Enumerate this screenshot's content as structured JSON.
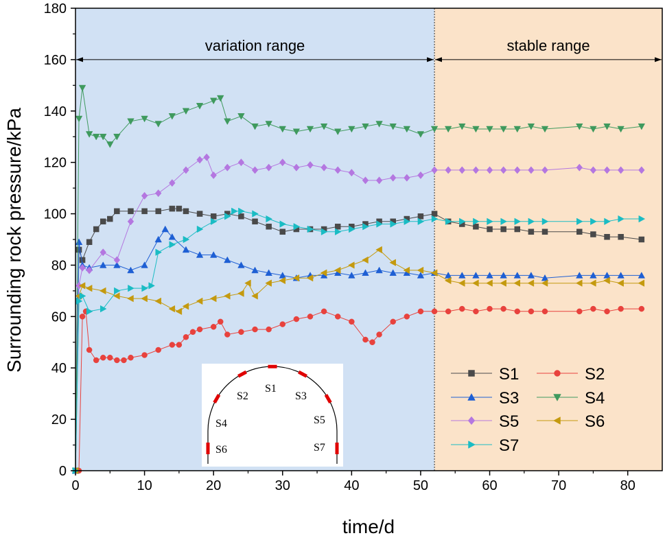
{
  "chart_data": {
    "type": "scatter",
    "title": "",
    "xlabel": "time/d",
    "ylabel": "Surrounding rock pressure/kPa",
    "xlim": [
      0,
      85
    ],
    "ylim": [
      0,
      180
    ],
    "xticks": [
      0,
      10,
      20,
      30,
      40,
      50,
      60,
      70,
      80
    ],
    "yticks": [
      0,
      20,
      40,
      60,
      80,
      100,
      120,
      140,
      160,
      180
    ],
    "grid": false,
    "legend_position": "bottom-right",
    "regions": [
      {
        "label": "variation range",
        "x_start": 0,
        "x_end": 52,
        "color": "#d1e1f4"
      },
      {
        "label": "stable range",
        "x_start": 52,
        "x_end": 85,
        "color": "#fbe3c9"
      }
    ],
    "region_arrow_y": 160,
    "inset": {
      "labels": [
        "S1",
        "S2",
        "S3",
        "S4",
        "S5",
        "S6",
        "S7"
      ]
    },
    "series": [
      {
        "name": "S1",
        "color": "#4a4a4a",
        "marker": "square",
        "x": [
          0,
          0.5,
          1,
          2,
          3,
          4,
          5,
          6,
          8,
          10,
          12,
          14,
          15,
          16,
          18,
          20,
          22,
          24,
          26,
          28,
          30,
          32,
          34,
          36,
          38,
          40,
          42,
          44,
          46,
          48,
          50,
          52,
          54,
          56,
          58,
          60,
          62,
          64,
          66,
          68,
          73,
          75,
          77,
          79,
          82
        ],
        "y": [
          0,
          86,
          82,
          89,
          94,
          97,
          98,
          101,
          101,
          101,
          101,
          102,
          102,
          101,
          100,
          99,
          100,
          99,
          97,
          95,
          93,
          94,
          94,
          94,
          95,
          95,
          96,
          97,
          97,
          98,
          99,
          100,
          97,
          96,
          95,
          94,
          94,
          94,
          93,
          93,
          93,
          92,
          91,
          91,
          90
        ]
      },
      {
        "name": "S2",
        "color": "#e8423d",
        "marker": "circle",
        "x": [
          0,
          0.5,
          1,
          1.5,
          2,
          3,
          4,
          5,
          6,
          7,
          8,
          10,
          12,
          14,
          15,
          16,
          17,
          18,
          20,
          21,
          22,
          24,
          26,
          28,
          30,
          32,
          34,
          36,
          38,
          40,
          42,
          43,
          44,
          46,
          48,
          50,
          52,
          54,
          56,
          58,
          60,
          62,
          64,
          66,
          68,
          73,
          75,
          77,
          79,
          82
        ],
        "y": [
          0,
          0,
          60,
          62,
          47,
          43,
          44,
          44,
          43,
          43,
          44,
          45,
          47,
          49,
          49,
          52,
          54,
          55,
          56,
          58,
          53,
          54,
          55,
          55,
          57,
          59,
          60,
          62,
          60,
          58,
          51,
          50,
          53,
          58,
          60,
          62,
          62,
          62,
          63,
          62,
          63,
          63,
          62,
          62,
          62,
          62,
          63,
          62,
          63,
          63
        ]
      },
      {
        "name": "S3",
        "color": "#1e5fd4",
        "marker": "triangle-up",
        "x": [
          0,
          0.5,
          1,
          2,
          4,
          6,
          8,
          10,
          12,
          13,
          14,
          16,
          18,
          20,
          22,
          24,
          26,
          28,
          30,
          32,
          34,
          36,
          38,
          40,
          42,
          44,
          46,
          48,
          50,
          52,
          54,
          56,
          58,
          60,
          62,
          64,
          66,
          68,
          73,
          75,
          77,
          79,
          82
        ],
        "y": [
          0,
          89,
          80,
          79,
          80,
          80,
          78,
          80,
          90,
          94,
          91,
          86,
          84,
          84,
          82,
          80,
          78,
          77,
          76,
          75,
          76,
          76,
          77,
          76,
          77,
          78,
          77,
          77,
          76,
          77,
          76,
          76,
          76,
          76,
          76,
          76,
          76,
          75,
          76,
          76,
          76,
          76,
          76
        ]
      },
      {
        "name": "S4",
        "color": "#3f9a5e",
        "marker": "triangle-down",
        "x": [
          0,
          0.5,
          1,
          2,
          3,
          4,
          5,
          6,
          8,
          10,
          12,
          14,
          16,
          18,
          20,
          21,
          22,
          24,
          26,
          28,
          30,
          32,
          34,
          36,
          38,
          40,
          42,
          44,
          46,
          48,
          50,
          52,
          54,
          56,
          58,
          60,
          62,
          64,
          66,
          68,
          73,
          75,
          77,
          79,
          82
        ],
        "y": [
          0,
          137,
          149,
          131,
          130,
          130,
          127,
          130,
          136,
          137,
          135,
          138,
          140,
          142,
          144,
          145,
          136,
          138,
          134,
          135,
          133,
          132,
          133,
          134,
          132,
          133,
          134,
          135,
          134,
          133,
          131,
          133,
          133,
          134,
          133,
          133,
          133,
          133,
          134,
          133,
          134,
          133,
          134,
          133,
          134
        ]
      },
      {
        "name": "S5",
        "color": "#b477e0",
        "marker": "diamond",
        "x": [
          0,
          0.5,
          1,
          2,
          4,
          6,
          8,
          10,
          12,
          14,
          16,
          18,
          19,
          20,
          22,
          24,
          26,
          28,
          30,
          32,
          34,
          36,
          38,
          40,
          42,
          44,
          46,
          48,
          50,
          52,
          54,
          56,
          58,
          60,
          62,
          64,
          66,
          68,
          73,
          75,
          77,
          79,
          82
        ],
        "y": [
          0,
          72,
          79,
          78,
          85,
          82,
          97,
          107,
          108,
          112,
          117,
          121,
          122,
          115,
          118,
          120,
          117,
          118,
          120,
          118,
          119,
          118,
          117,
          116,
          113,
          113,
          114,
          114,
          115,
          117,
          117,
          117,
          117,
          117,
          117,
          117,
          117,
          117,
          118,
          117,
          117,
          117,
          117
        ]
      },
      {
        "name": "S6",
        "color": "#c49a0f",
        "marker": "triangle-left",
        "x": [
          0,
          0.5,
          1,
          2,
          4,
          6,
          8,
          10,
          12,
          14,
          15,
          16,
          18,
          20,
          22,
          24,
          25,
          26,
          28,
          30,
          32,
          34,
          36,
          38,
          40,
          42,
          44,
          46,
          48,
          50,
          52,
          54,
          56,
          58,
          60,
          62,
          64,
          66,
          68,
          73,
          75,
          77,
          79,
          82
        ],
        "y": [
          0,
          68,
          72,
          71,
          70,
          68,
          67,
          67,
          66,
          63,
          62,
          64,
          66,
          67,
          68,
          69,
          73,
          68,
          73,
          74,
          75,
          75,
          77,
          78,
          80,
          82,
          86,
          81,
          78,
          78,
          77,
          74,
          73,
          73,
          73,
          73,
          73,
          73,
          73,
          73,
          73,
          74,
          73,
          73
        ]
      },
      {
        "name": "S7",
        "color": "#1bbcc4",
        "marker": "triangle-right",
        "x": [
          0,
          0.5,
          1,
          2,
          4,
          6,
          8,
          10,
          11,
          12,
          14,
          16,
          18,
          20,
          22,
          23,
          24,
          26,
          28,
          30,
          32,
          34,
          36,
          38,
          40,
          42,
          44,
          46,
          48,
          50,
          52,
          54,
          56,
          58,
          60,
          62,
          64,
          66,
          68,
          73,
          75,
          77,
          79,
          82
        ],
        "y": [
          0,
          66,
          68,
          62,
          63,
          70,
          71,
          71,
          72,
          85,
          88,
          90,
          94,
          97,
          99,
          101,
          101,
          100,
          98,
          96,
          95,
          94,
          93,
          93,
          94,
          95,
          96,
          96,
          97,
          97,
          98,
          97,
          97,
          97,
          97,
          97,
          97,
          97,
          97,
          97,
          97,
          97,
          98,
          98
        ]
      }
    ]
  }
}
